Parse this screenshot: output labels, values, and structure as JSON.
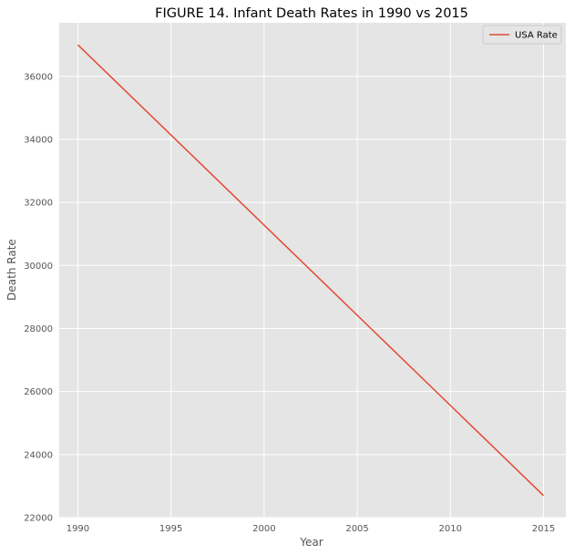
{
  "chart_data": {
    "type": "line",
    "title": "FIGURE 14. Infant Death Rates in 1990 vs 2015",
    "xlabel": "Year",
    "ylabel": "Death Rate",
    "xlim": [
      1989,
      2016.2
    ],
    "ylim": [
      22000,
      37700
    ],
    "x_ticks": [
      1990,
      1995,
      2000,
      2005,
      2010,
      2015
    ],
    "y_ticks": [
      22000,
      24000,
      26000,
      28000,
      30000,
      32000,
      34000,
      36000
    ],
    "grid": true,
    "legend_position": "top-right",
    "background_color": "#e5e5e5",
    "grid_color": "#ffffff",
    "series": [
      {
        "name": "USA Rate",
        "color": "#e24a33",
        "x": [
          1990,
          2015
        ],
        "y": [
          37000,
          22700
        ]
      }
    ]
  }
}
